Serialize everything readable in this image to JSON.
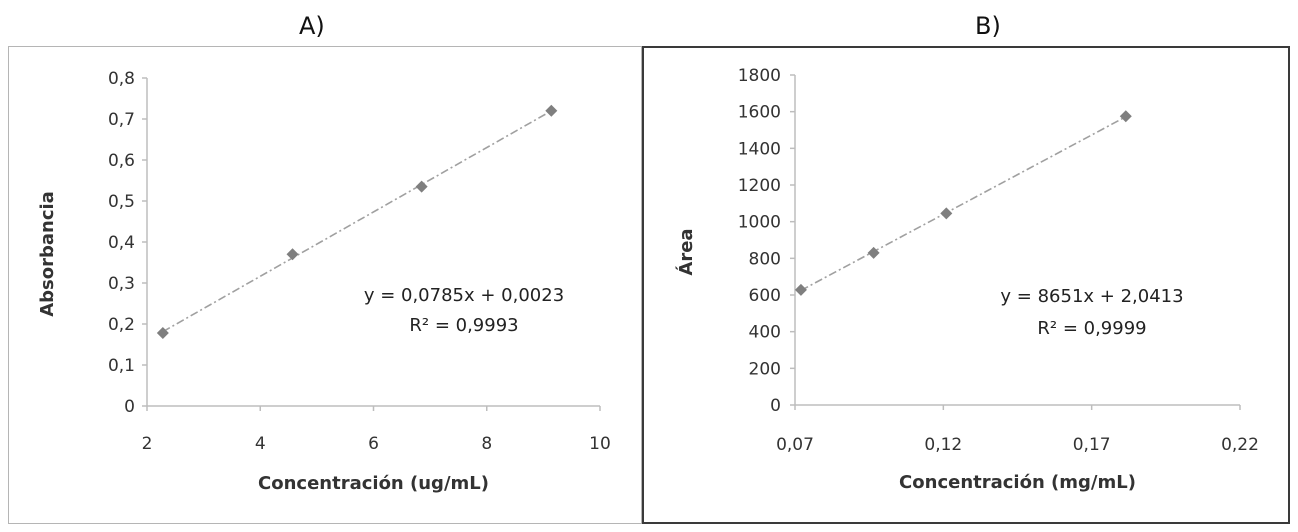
{
  "panels": {
    "a_label": "A)",
    "b_label": "B)"
  },
  "colors": {
    "marker": "#7f7f7f",
    "trendline": "#a0a0a0",
    "axis": "#bdbdbd"
  },
  "chart_data": [
    {
      "type": "scatter",
      "panel": "A)",
      "xlabel": "Concentración (ug/mL)",
      "ylabel": "Absorbancia",
      "xlim": [
        2,
        10
      ],
      "ylim": [
        0,
        0.8
      ],
      "x_ticks": [
        "2",
        "4",
        "6",
        "8",
        "10"
      ],
      "y_ticks": [
        "0",
        "0,1",
        "0,2",
        "0,3",
        "0,4",
        "0,5",
        "0,6",
        "0,7",
        "0,8"
      ],
      "points": [
        {
          "x": 2.28,
          "y": 0.178
        },
        {
          "x": 4.57,
          "y": 0.37
        },
        {
          "x": 6.85,
          "y": 0.535
        },
        {
          "x": 9.14,
          "y": 0.72
        }
      ],
      "trendline": {
        "slope": 0.0785,
        "intercept": 0.0023,
        "style": "dash-dot"
      },
      "equation": "y = 0,0785x + 0,0023",
      "r2_label": "R² = 0,9993",
      "grid": false
    },
    {
      "type": "scatter",
      "panel": "B)",
      "xlabel": "Concentración  (mg/mL)",
      "ylabel": "Área",
      "xlim": [
        0.07,
        0.22
      ],
      "ylim": [
        0,
        1800
      ],
      "x_ticks": [
        "0,07",
        "0,12",
        "0,17",
        "0,22"
      ],
      "y_ticks": [
        "0",
        "200",
        "400",
        "600",
        "800",
        "1000",
        "1200",
        "1400",
        "1600",
        "1800"
      ],
      "points": [
        {
          "x": 0.072,
          "y": 628
        },
        {
          "x": 0.0965,
          "y": 830
        },
        {
          "x": 0.121,
          "y": 1045
        },
        {
          "x": 0.1815,
          "y": 1575
        }
      ],
      "trendline": {
        "slope": 8651,
        "intercept": 2.0413,
        "style": "dash-dot"
      },
      "equation": "y = 8651x + 2,0413",
      "r2_label": "R² = 0,9999",
      "grid": false
    }
  ]
}
